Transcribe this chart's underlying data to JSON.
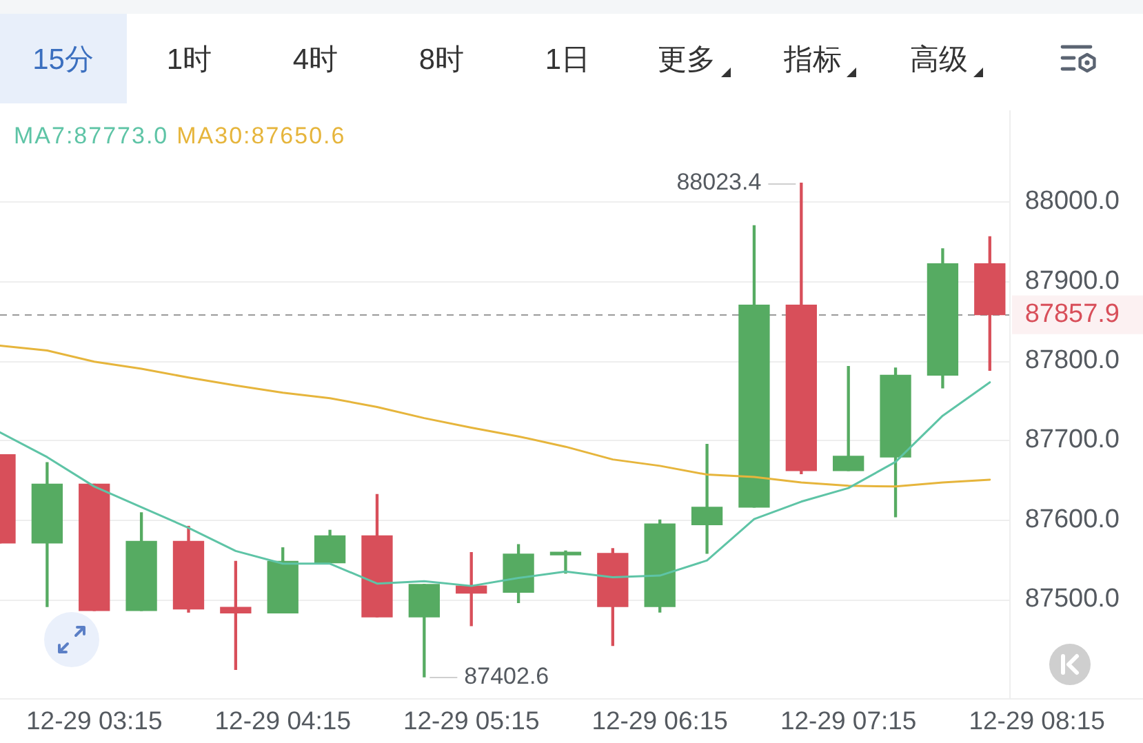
{
  "chart_data": {
    "type": "candlestick",
    "categories": [
      null,
      null,
      "12-29 03:15",
      null,
      null,
      null,
      "12-29 04:15",
      null,
      null,
      null,
      "12-29 05:15",
      null,
      null,
      null,
      "12-29 06:15",
      null,
      null,
      null,
      "12-29 07:15",
      null,
      null,
      null,
      "12-29 08:15"
    ],
    "ohlc": [
      [
        87682,
        87682,
        87571,
        87571
      ],
      [
        87571,
        87672,
        87491,
        87645
      ],
      [
        87645,
        87645,
        87486,
        87486
      ],
      [
        87486,
        87609,
        87486,
        87573
      ],
      [
        87573,
        87592,
        87484,
        87488
      ],
      [
        87490,
        87548,
        87412,
        87483
      ],
      [
        87483,
        87565,
        87483,
        87548
      ],
      [
        87546,
        87587,
        87546,
        87580
      ],
      [
        87580,
        87632,
        87478,
        87478
      ],
      [
        87478,
        87519,
        87402.6,
        87519
      ],
      [
        87517,
        87559,
        87467,
        87508
      ],
      [
        87509,
        87569,
        87496,
        87557
      ],
      [
        87556,
        87561,
        87533,
        87558
      ],
      [
        87558,
        87564,
        87442,
        87491
      ],
      [
        87491,
        87600,
        87484,
        87595
      ],
      [
        87594,
        87695,
        87558,
        87616
      ],
      [
        87616,
        87970,
        87616,
        87870
      ],
      [
        87870,
        88023.4,
        87658,
        87662
      ],
      [
        87662,
        87793,
        87662,
        87680
      ],
      [
        87679,
        87791,
        87604,
        87782
      ],
      [
        87782,
        87941,
        87766,
        87922
      ],
      [
        87922,
        87956,
        87788,
        87857.9
      ],
      null
    ],
    "colors": [
      "#d84f5a",
      "#56ab62",
      "#d84f5a",
      "#56ab62",
      "#d84f5a",
      "#d84f5a",
      "#56ab62",
      "#56ab62",
      "#d84f5a",
      "#56ab62",
      "#d84f5a",
      "#56ab62",
      "#56ab62",
      "#d84f5a",
      "#56ab62",
      "#56ab62",
      "#56ab62",
      "#d84f5a",
      "#56ab62",
      "#56ab62",
      "#56ab62",
      "#d84f5a",
      null
    ],
    "series": [
      {
        "name": "MA7:87773.0",
        "type": "line",
        "color": "#5ec4a6",
        "values": [
          87710,
          87679,
          87642,
          87616,
          87590,
          87561,
          87545,
          87545,
          87520,
          87523,
          87517,
          87527,
          87535,
          87528,
          87530,
          87549,
          87601,
          87623,
          87640,
          87673,
          87731,
          87773.0,
          null
        ]
      },
      {
        "name": "MA30:87650.6",
        "type": "line",
        "color": "#e6b53c",
        "values": [
          87819,
          87813,
          87799,
          87790,
          87779,
          87769,
          87760,
          87753,
          87742,
          87728,
          87716,
          87705,
          87692,
          87676,
          87668,
          87657,
          87654,
          87647,
          87643,
          87642,
          87647,
          87650.6,
          null
        ]
      }
    ],
    "ylim": [
      87375,
      88115
    ],
    "yticks": [
      {
        "value": 87500,
        "label": "87500.0"
      },
      {
        "value": 87600,
        "label": "87600.0"
      },
      {
        "value": 87700,
        "label": "87700.0"
      },
      {
        "value": 87800,
        "label": "87800.0"
      },
      {
        "value": 87900,
        "label": "87900.0"
      },
      {
        "value": 88000,
        "label": "88000.0"
      }
    ],
    "grid": "y",
    "legend": "top left",
    "ref_lines": [
      {
        "axis": "y",
        "value": 87857.9,
        "label": "87857.9",
        "color": "#9a9a9a",
        "line_style": "dashed"
      }
    ],
    "annotations": [
      "15分",
      "1时",
      "4时",
      "8时",
      "1日",
      "更多",
      "指标",
      "高级",
      "88023.4",
      "87402.6"
    ]
  }
}
